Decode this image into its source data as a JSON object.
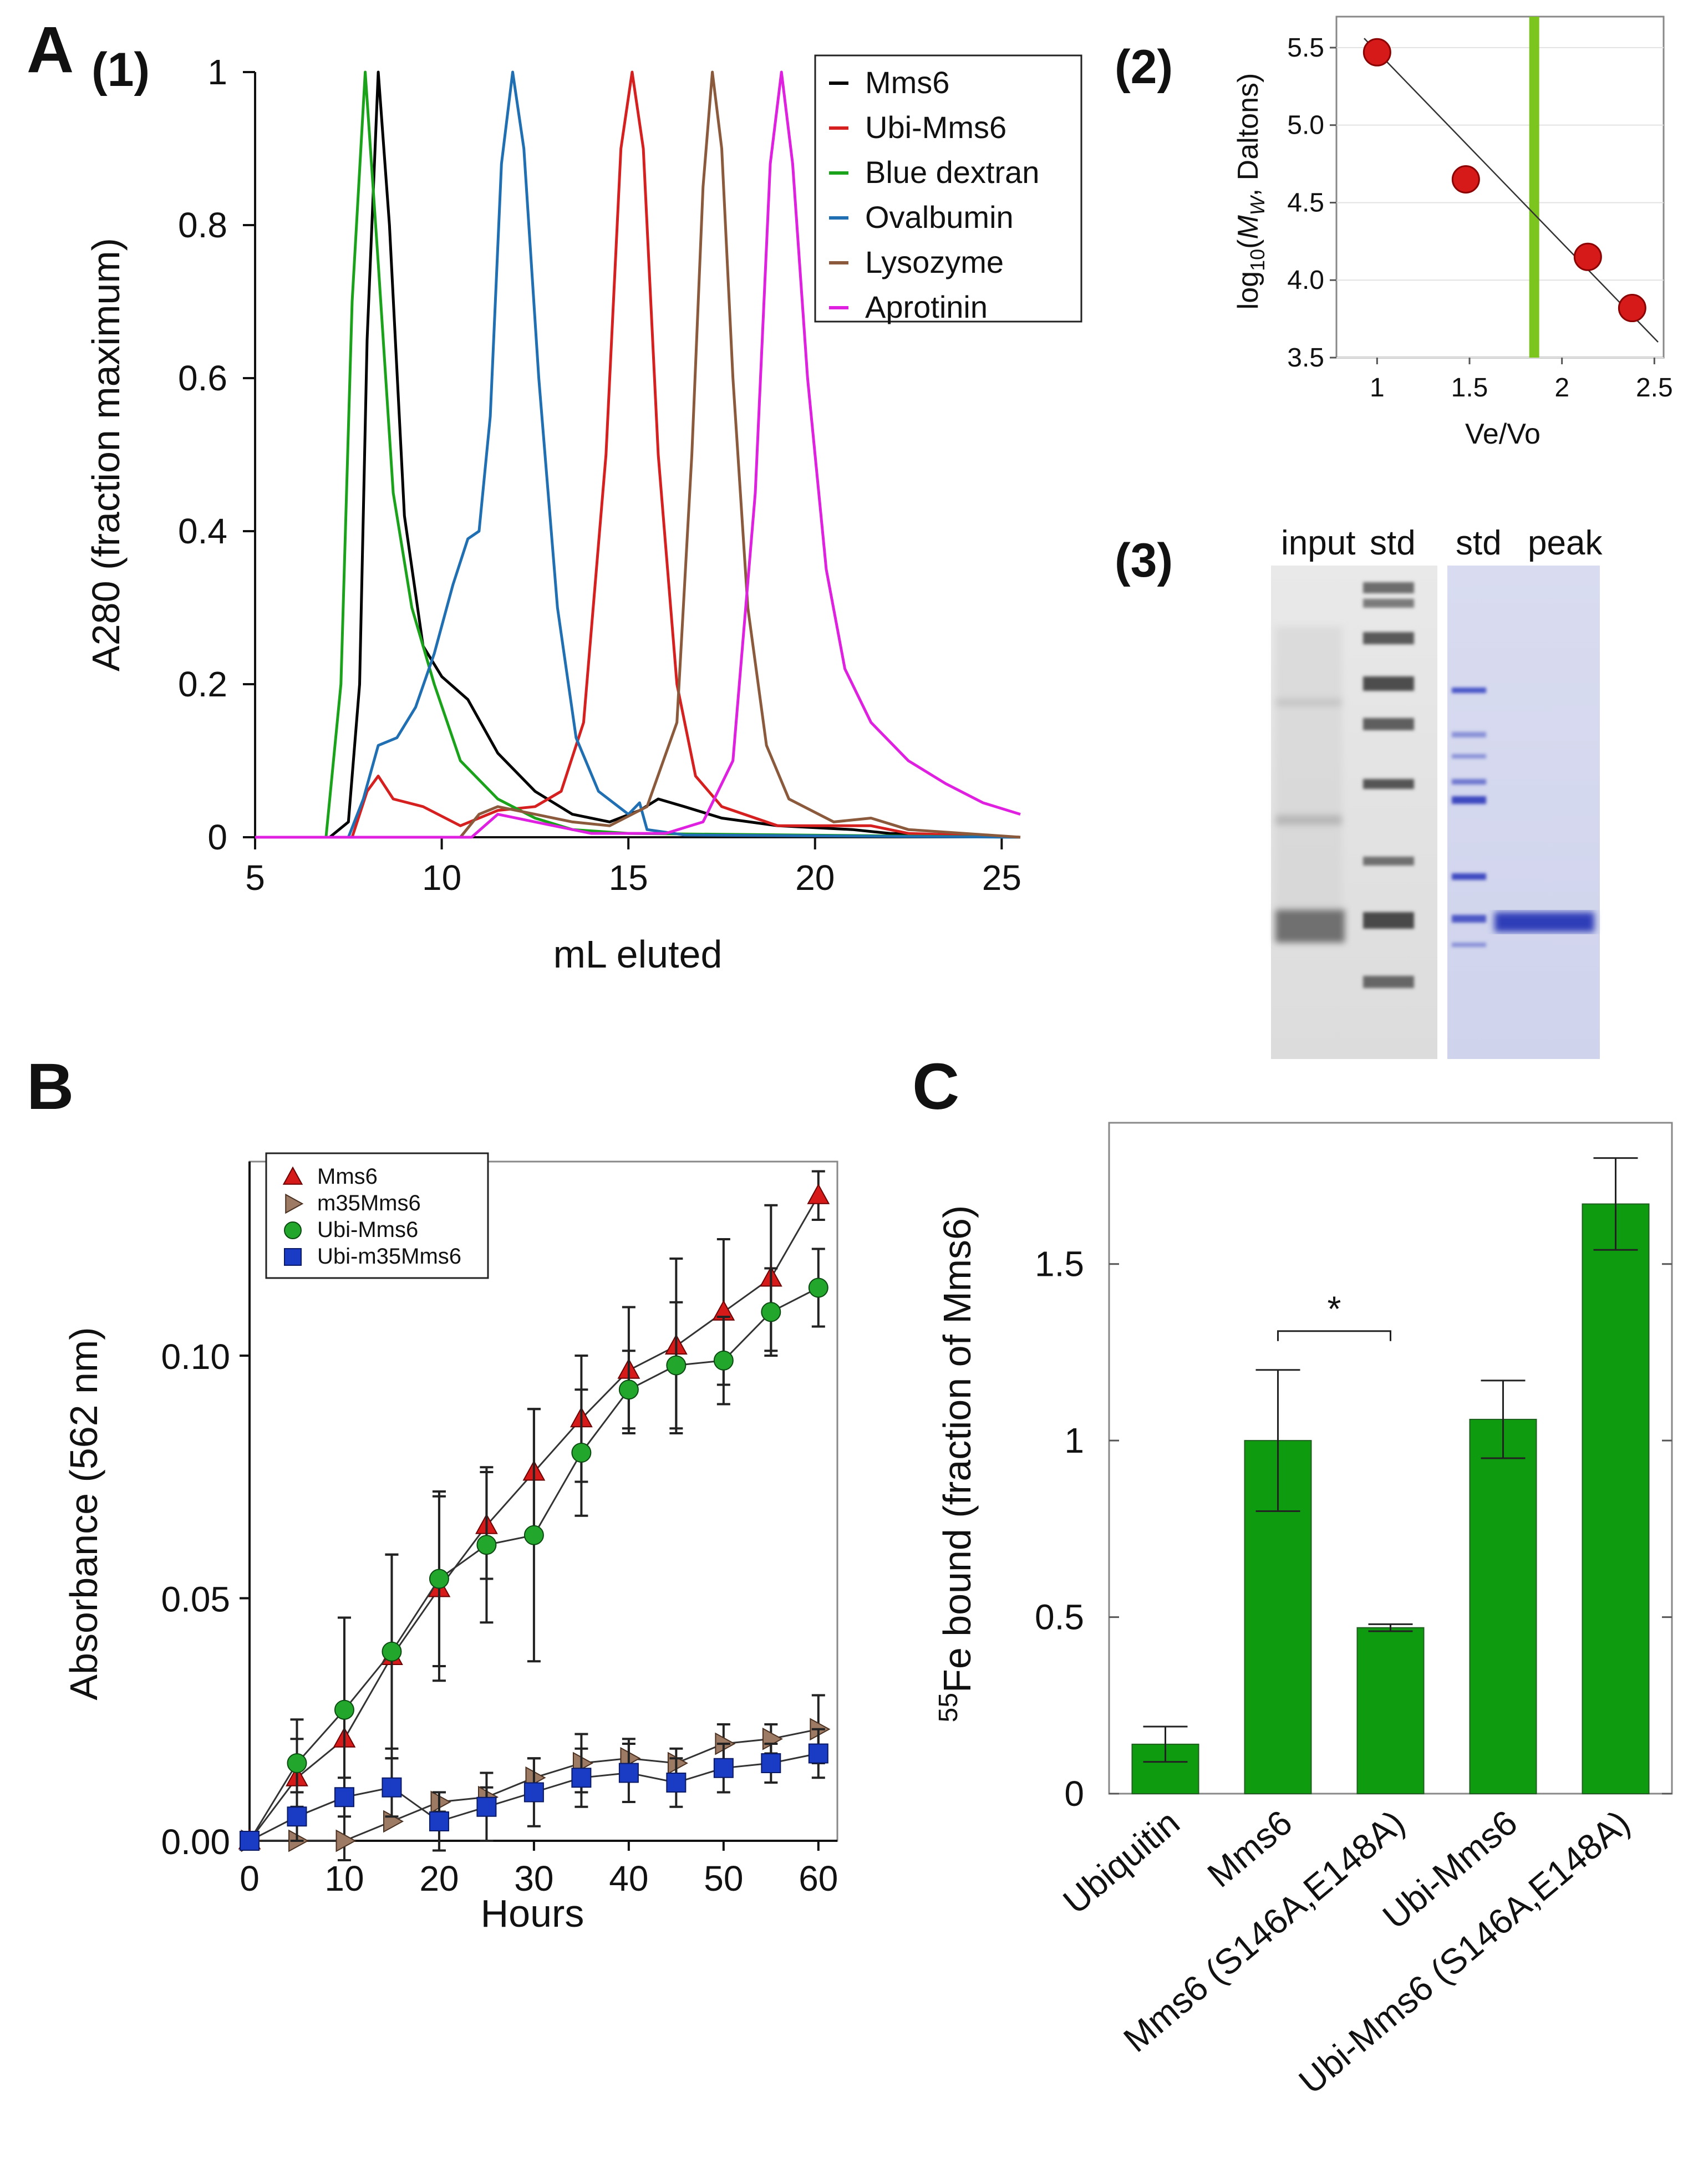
{
  "panels": {
    "A": "A",
    "A1": "(1)",
    "A2": "(2)",
    "A3": "(3)",
    "B": "B",
    "C": "C"
  },
  "chart_data": [
    {
      "id": "A1",
      "type": "line",
      "xlabel": "mL eluted",
      "ylabel": "A280 (fraction maximum)",
      "xlim": [
        5,
        25.5
      ],
      "ylim": [
        0,
        1
      ],
      "xticks": [
        5,
        10,
        15,
        20,
        25
      ],
      "yticks": [
        0,
        0.2,
        0.4,
        0.6,
        0.8,
        1
      ],
      "ytick_labels": [
        "0",
        "0.2",
        "0.4",
        "0.6",
        "0.8",
        "1"
      ],
      "legend_position": "top-right",
      "series": [
        {
          "name": "Mms6",
          "color": "#000000",
          "points": [
            [
              5,
              0
            ],
            [
              7,
              0
            ],
            [
              7.5,
              0.02
            ],
            [
              7.8,
              0.2
            ],
            [
              8.0,
              0.65
            ],
            [
              8.3,
              1.0
            ],
            [
              8.6,
              0.8
            ],
            [
              9.0,
              0.42
            ],
            [
              9.5,
              0.25
            ],
            [
              10.0,
              0.21
            ],
            [
              10.7,
              0.18
            ],
            [
              11.5,
              0.11
            ],
            [
              12.5,
              0.06
            ],
            [
              13.5,
              0.03
            ],
            [
              14.5,
              0.02
            ],
            [
              15.3,
              0.035
            ],
            [
              15.8,
              0.05
            ],
            [
              16.5,
              0.04
            ],
            [
              17.5,
              0.025
            ],
            [
              19.0,
              0.015
            ],
            [
              21.0,
              0.01
            ],
            [
              22.0,
              0.005
            ],
            [
              25.5,
              0.0
            ]
          ]
        },
        {
          "name": "Ubi-Mms6",
          "color": "#d62020",
          "points": [
            [
              5,
              0
            ],
            [
              7.6,
              0
            ],
            [
              8.0,
              0.06
            ],
            [
              8.3,
              0.08
            ],
            [
              8.7,
              0.05
            ],
            [
              9.5,
              0.04
            ],
            [
              10.5,
              0.015
            ],
            [
              11.5,
              0.035
            ],
            [
              12.5,
              0.04
            ],
            [
              13.2,
              0.06
            ],
            [
              13.8,
              0.15
            ],
            [
              14.4,
              0.5
            ],
            [
              14.8,
              0.9
            ],
            [
              15.1,
              1.0
            ],
            [
              15.4,
              0.9
            ],
            [
              15.8,
              0.5
            ],
            [
              16.3,
              0.2
            ],
            [
              16.8,
              0.08
            ],
            [
              17.5,
              0.04
            ],
            [
              19.0,
              0.015
            ],
            [
              21.5,
              0.015
            ],
            [
              22.5,
              0.005
            ],
            [
              25.5,
              0.0
            ]
          ]
        },
        {
          "name": "Blue dextran",
          "color": "#1aa31a",
          "points": [
            [
              5,
              0
            ],
            [
              6.9,
              0
            ],
            [
              7.3,
              0.2
            ],
            [
              7.6,
              0.7
            ],
            [
              7.95,
              1.0
            ],
            [
              8.3,
              0.75
            ],
            [
              8.7,
              0.45
            ],
            [
              9.2,
              0.3
            ],
            [
              9.8,
              0.2
            ],
            [
              10.5,
              0.1
            ],
            [
              11.5,
              0.05
            ],
            [
              12.5,
              0.025
            ],
            [
              13.5,
              0.01
            ],
            [
              15.0,
              0.005
            ],
            [
              25.5,
              0.0
            ]
          ]
        },
        {
          "name": "Ovalbumin",
          "color": "#1f6fb2",
          "points": [
            [
              5,
              0
            ],
            [
              7.5,
              0
            ],
            [
              7.9,
              0.05
            ],
            [
              8.3,
              0.12
            ],
            [
              8.8,
              0.13
            ],
            [
              9.3,
              0.17
            ],
            [
              9.8,
              0.24
            ],
            [
              10.3,
              0.33
            ],
            [
              10.7,
              0.39
            ],
            [
              11.0,
              0.4
            ],
            [
              11.3,
              0.55
            ],
            [
              11.6,
              0.88
            ],
            [
              11.9,
              1.0
            ],
            [
              12.2,
              0.9
            ],
            [
              12.6,
              0.6
            ],
            [
              13.1,
              0.3
            ],
            [
              13.6,
              0.13
            ],
            [
              14.2,
              0.06
            ],
            [
              15.0,
              0.03
            ],
            [
              15.3,
              0.045
            ],
            [
              15.5,
              0.01
            ],
            [
              16.5,
              0.003
            ],
            [
              25.5,
              0.0
            ]
          ]
        },
        {
          "name": "Lysozyme",
          "color": "#8b5a3c",
          "points": [
            [
              5,
              0
            ],
            [
              10.5,
              0
            ],
            [
              11.0,
              0.03
            ],
            [
              11.5,
              0.04
            ],
            [
              12.5,
              0.03
            ],
            [
              13.5,
              0.02
            ],
            [
              14.5,
              0.015
            ],
            [
              15.5,
              0.04
            ],
            [
              16.3,
              0.15
            ],
            [
              16.7,
              0.5
            ],
            [
              17.0,
              0.85
            ],
            [
              17.25,
              1.0
            ],
            [
              17.5,
              0.9
            ],
            [
              17.8,
              0.6
            ],
            [
              18.2,
              0.3
            ],
            [
              18.7,
              0.12
            ],
            [
              19.3,
              0.05
            ],
            [
              20.5,
              0.02
            ],
            [
              21.5,
              0.025
            ],
            [
              22.5,
              0.01
            ],
            [
              25.5,
              0.0
            ]
          ]
        },
        {
          "name": "Aprotinin",
          "color": "#e020e0",
          "points": [
            [
              5,
              0
            ],
            [
              10.8,
              0
            ],
            [
              11.5,
              0.03
            ],
            [
              12.5,
              0.02
            ],
            [
              14.0,
              0.005
            ],
            [
              16.0,
              0.005
            ],
            [
              17.0,
              0.02
            ],
            [
              17.8,
              0.1
            ],
            [
              18.4,
              0.45
            ],
            [
              18.8,
              0.88
            ],
            [
              19.1,
              1.0
            ],
            [
              19.4,
              0.88
            ],
            [
              19.8,
              0.6
            ],
            [
              20.3,
              0.35
            ],
            [
              20.8,
              0.22
            ],
            [
              21.5,
              0.15
            ],
            [
              22.5,
              0.1
            ],
            [
              23.5,
              0.07
            ],
            [
              24.5,
              0.045
            ],
            [
              25.5,
              0.03
            ]
          ]
        }
      ]
    },
    {
      "id": "A2",
      "type": "scatter",
      "xlabel": "Ve/Vo",
      "ylabel_parts": [
        "log",
        "10",
        "(",
        "M",
        "W",
        ", Daltons)"
      ],
      "xlim": [
        0.78,
        2.55
      ],
      "ylim": [
        3.5,
        5.7
      ],
      "xticks": [
        1,
        1.5,
        2,
        2.5
      ],
      "xtick_labels": [
        "1",
        "1.5",
        "2",
        "2.5"
      ],
      "yticks": [
        3.5,
        4.0,
        4.5,
        5.0,
        5.5
      ],
      "ytick_labels": [
        "3.5",
        "4.0",
        "4.5",
        "5.0",
        "5.5"
      ],
      "points": [
        [
          1.0,
          5.47
        ],
        [
          1.48,
          4.65
        ],
        [
          2.14,
          4.15
        ],
        [
          2.38,
          3.82
        ]
      ],
      "fit_line": [
        [
          0.93,
          5.56
        ],
        [
          2.52,
          3.6
        ]
      ],
      "marker_line_x": 1.85,
      "marker_color": "#d61a1a",
      "vline_color": "#7cc41e"
    },
    {
      "id": "B",
      "type": "line",
      "xlabel": "Hours",
      "ylabel": "Absorbance (562 nm)",
      "xlim": [
        0,
        62
      ],
      "ylim": [
        0,
        0.14
      ],
      "xticks": [
        0,
        10,
        20,
        30,
        40,
        50,
        60
      ],
      "yticks": [
        0.0,
        0.05,
        0.1
      ],
      "ytick_labels": [
        "0.00",
        "0.05",
        "0.10"
      ],
      "x": [
        0,
        5,
        10,
        15,
        20,
        25,
        30,
        35,
        40,
        45,
        50,
        55,
        60
      ],
      "legend_position": "top-left",
      "series": [
        {
          "name": "Mms6",
          "marker": "triangle-up",
          "color": "#d61a1a",
          "values": [
            0,
            0.013,
            0.021,
            0.038,
            0.052,
            0.065,
            0.076,
            0.087,
            0.097,
            0.102,
            0.109,
            0.116,
            0.133
          ],
          "errors": [
            0,
            0.008,
            0.025,
            0.021,
            0.019,
            0.011,
            0.013,
            0.013,
            0.013,
            0.018,
            0.015,
            0.015,
            0.005
          ]
        },
        {
          "name": "m35Mms6",
          "marker": "triangle-right",
          "color": "#9c7a64",
          "values": [
            0,
            0.0,
            0.0,
            0.004,
            0.008,
            0.009,
            0.013,
            0.016,
            0.017,
            0.016,
            0.02,
            0.021,
            0.023
          ],
          "errors": [
            0,
            0,
            0,
            0,
            0.002,
            0.002,
            0.004,
            0.006,
            0.004,
            0.003,
            0.004,
            0.003,
            0.007
          ]
        },
        {
          "name": "Ubi-Mms6",
          "marker": "circle",
          "color": "#22a62c",
          "values": [
            0,
            0.016,
            0.027,
            0.039,
            0.054,
            0.061,
            0.063,
            0.08,
            0.093,
            0.098,
            0.099,
            0.109,
            0.114
          ],
          "errors": [
            0,
            0.009,
            0.019,
            0.02,
            0.018,
            0.016,
            0.026,
            0.013,
            0.008,
            0.013,
            0.009,
            0.009,
            0.008
          ]
        },
        {
          "name": "Ubi-m35Mms6",
          "marker": "square",
          "color": "#1a3cc4",
          "values": [
            0,
            0.005,
            0.009,
            0.011,
            0.004,
            0.007,
            0.01,
            0.013,
            0.014,
            0.012,
            0.015,
            0.016,
            0.018
          ],
          "errors": [
            0,
            0.005,
            0.004,
            0.006,
            0.006,
            0.007,
            0.007,
            0.006,
            0.006,
            0.005,
            0.005,
            0.004,
            0.005
          ]
        }
      ]
    },
    {
      "id": "C",
      "type": "bar",
      "ylabel_parts": [
        "55",
        "Fe bound (fraction of Mms6)"
      ],
      "ylim": [
        0,
        1.9
      ],
      "yticks": [
        0,
        0.5,
        1,
        1.5
      ],
      "ytick_labels": [
        "0",
        "0.5",
        "1",
        "1.5"
      ],
      "categories": [
        "Ubiquitin",
        "Mms6",
        "Mms6 (S146A,E148A)",
        "Ubi-Mms6",
        "Ubi-Mms6 (S146A,E148A)"
      ],
      "values": [
        0.14,
        1.0,
        0.47,
        1.06,
        1.67
      ],
      "errors": [
        0.05,
        0.2,
        0.01,
        0.11,
        0.13
      ],
      "bar_color": "#0f9b0f",
      "significance": {
        "between": [
          1,
          2
        ],
        "label": "*"
      }
    }
  ],
  "gel": {
    "labels": [
      "input",
      "std",
      "std",
      "peak"
    ]
  }
}
